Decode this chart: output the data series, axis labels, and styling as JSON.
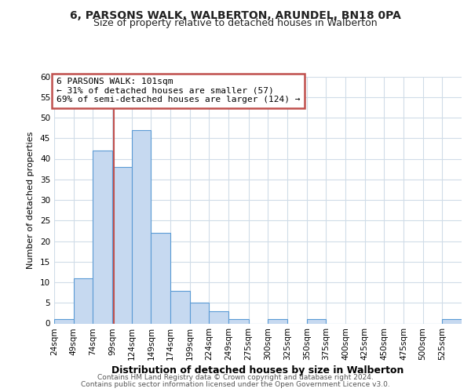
{
  "title": "6, PARSONS WALK, WALBERTON, ARUNDEL, BN18 0PA",
  "subtitle": "Size of property relative to detached houses in Walberton",
  "xlabel": "Distribution of detached houses by size in Walberton",
  "ylabel": "Number of detached properties",
  "bin_edges": [
    24,
    49,
    74,
    99,
    124,
    149,
    174,
    199,
    224,
    249,
    275,
    300,
    325,
    350,
    375,
    400,
    425,
    450,
    475,
    500,
    525,
    550
  ],
  "bin_counts": [
    1,
    11,
    42,
    38,
    47,
    22,
    8,
    5,
    3,
    1,
    0,
    1,
    0,
    1,
    0,
    0,
    0,
    0,
    0,
    0,
    1
  ],
  "bar_color": "#c6d9f0",
  "bar_edge_color": "#5b9bd5",
  "property_line_x": 101,
  "property_line_color": "#c0504d",
  "ylim": [
    0,
    60
  ],
  "yticks": [
    0,
    5,
    10,
    15,
    20,
    25,
    30,
    35,
    40,
    45,
    50,
    55,
    60
  ],
  "annotation_box_text": "6 PARSONS WALK: 101sqm\n← 31% of detached houses are smaller (57)\n69% of semi-detached houses are larger (124) →",
  "annotation_box_color": "#c0504d",
  "footer_line1": "Contains HM Land Registry data © Crown copyright and database right 2024.",
  "footer_line2": "Contains public sector information licensed under the Open Government Licence v3.0.",
  "background_color": "#ffffff",
  "grid_color": "#d0dce8",
  "title_fontsize": 10,
  "subtitle_fontsize": 9,
  "xlabel_fontsize": 9,
  "ylabel_fontsize": 8,
  "tick_fontsize": 7.5,
  "annot_fontsize": 8
}
